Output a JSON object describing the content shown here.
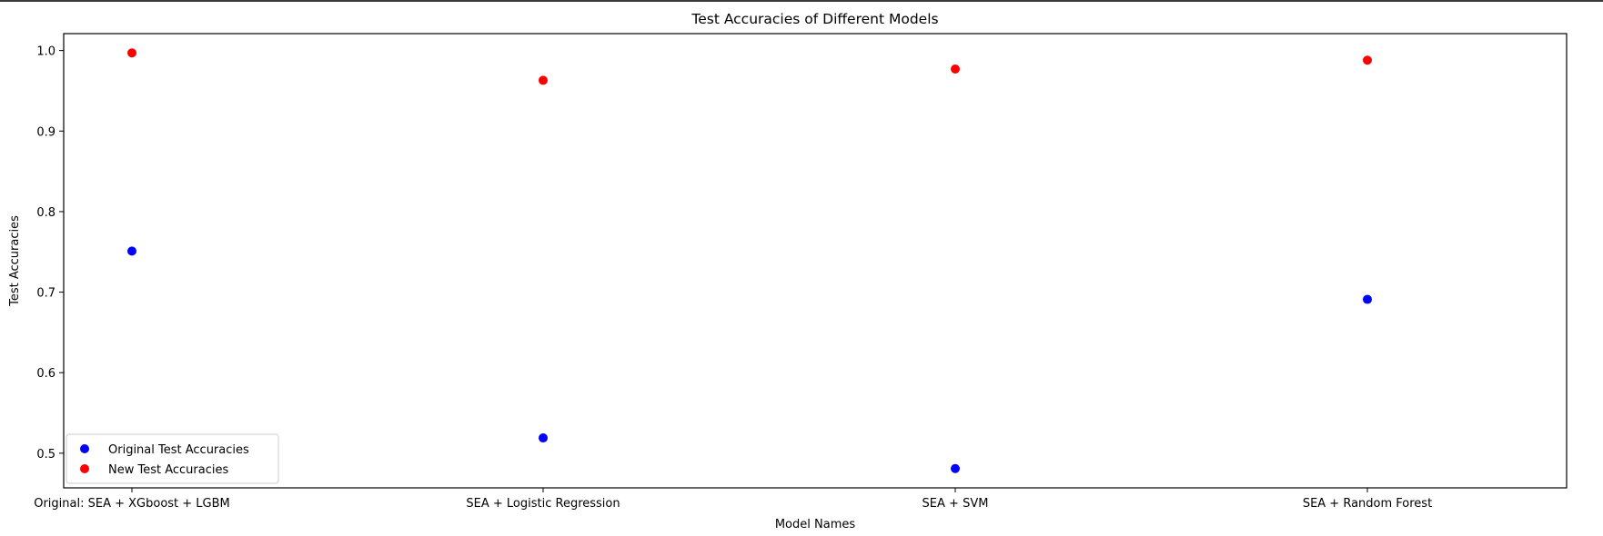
{
  "chart_data": {
    "type": "scatter",
    "title": "Test Accuracies of Different Models",
    "xlabel": "Model Names",
    "ylabel": "Test Accuracies",
    "categories": [
      "Original: SEA + XGboost + LGBM",
      "SEA + Logistic Regression",
      "SEA + SVM",
      "SEA + Random Forest"
    ],
    "series": [
      {
        "name": "Original Test Accuracies",
        "color": "#0000ff",
        "values": [
          0.751,
          0.519,
          0.481,
          0.691
        ]
      },
      {
        "name": "New Test Accuracies",
        "color": "#ff0000",
        "values": [
          0.997,
          0.963,
          0.977,
          0.988
        ]
      }
    ],
    "ylim": [
      0.457,
      1.021
    ],
    "yticks": [
      0.5,
      0.6,
      0.7,
      0.8,
      0.9,
      1.0
    ],
    "ytick_labels": [
      "0.5",
      "0.6",
      "0.7",
      "0.8",
      "0.9",
      "1.0"
    ],
    "grid": false,
    "legend_position": "lower-left"
  }
}
